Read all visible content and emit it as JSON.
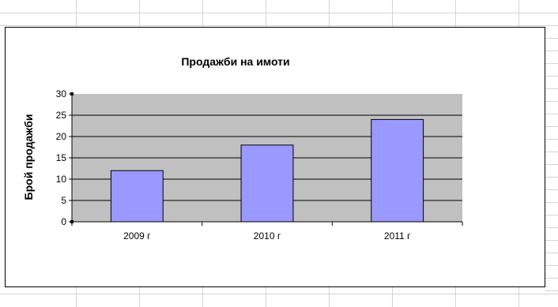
{
  "colors": {
    "plot_area": "#C0C0C0",
    "bar_fill": "#9999FF",
    "bar_stroke": "#000000",
    "gridline": "#000000",
    "sheet_grid": "#D4D4D4"
  },
  "chart_data": {
    "type": "bar",
    "title": "Продажби на имоти",
    "xlabel": "",
    "ylabel": "Брой продажби",
    "categories": [
      "2009 г",
      "2010 г",
      "2011 г"
    ],
    "values": [
      12,
      18,
      24
    ],
    "ylim": [
      0,
      30
    ],
    "yticks": [
      0,
      5,
      10,
      15,
      20,
      25,
      30
    ],
    "grid": true,
    "legend": "none"
  }
}
